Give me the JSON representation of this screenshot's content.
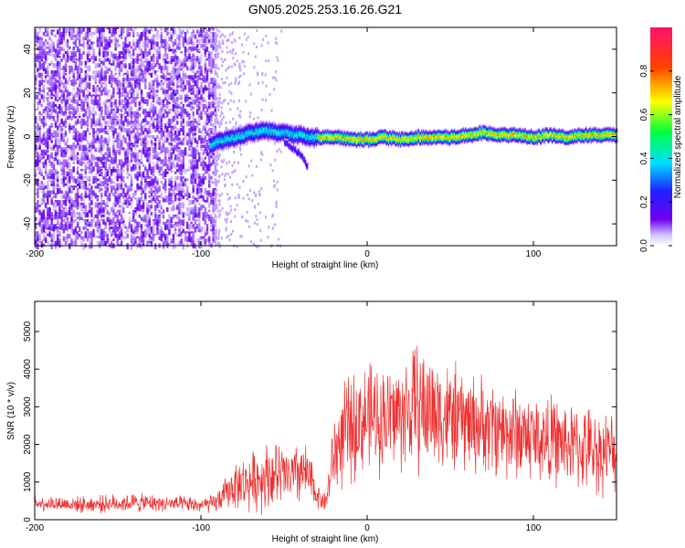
{
  "title": "GN05.2025.253.16.26.G21",
  "chart_data": [
    {
      "type": "heatmap",
      "xlabel": "Height of straight line (km)",
      "ylabel": "Frequency (Hz)",
      "xlim": [
        -200,
        150
      ],
      "ylim": [
        -50,
        50
      ],
      "x_ticks": [
        -200,
        -100,
        0,
        100
      ],
      "y_ticks": [
        -40,
        -20,
        0,
        20,
        40
      ],
      "colorbar": {
        "label": "Normalized spectral amplitude",
        "range": [
          0,
          1
        ],
        "ticks": [
          "0.0",
          "0.2",
          "0.4",
          "0.6",
          "0.8"
        ],
        "tick_values": [
          0,
          0.2,
          0.4,
          0.6,
          0.8
        ]
      },
      "noise_region_x": [
        -200,
        -92
      ],
      "signal_track": {
        "x": [
          -95,
          -90,
          -85,
          -80,
          -75,
          -70,
          -65,
          -60,
          -55,
          -50,
          -45,
          -40,
          -35,
          -30,
          -25,
          -20,
          -10,
          0,
          10,
          20,
          30,
          40,
          50,
          60,
          70,
          80,
          90,
          100,
          110,
          120,
          130,
          140,
          150
        ],
        "y": [
          -4,
          -2,
          -1,
          0,
          1,
          2,
          3,
          3,
          2,
          2,
          1,
          1,
          0,
          0,
          0,
          0,
          -1,
          -1,
          0,
          -1,
          0,
          0,
          0,
          1,
          2,
          1,
          1,
          0,
          1,
          0,
          1,
          1,
          1
        ]
      },
      "secondary_track": {
        "x": [
          -50,
          -45,
          -40,
          -38,
          -36
        ],
        "y": [
          -2,
          -5,
          -8,
          -11,
          -14
        ]
      }
    },
    {
      "type": "line",
      "xlabel": "Height of straight line (km)",
      "ylabel": "SNR (10 * v/v)",
      "xlim": [
        -200,
        150
      ],
      "ylim": [
        0,
        5800
      ],
      "x_ticks": [
        -200,
        -100,
        0,
        100
      ],
      "y_ticks": [
        0,
        1000,
        2000,
        3000,
        4000,
        5000
      ],
      "line_color": "#ee3030",
      "envelope": {
        "x": [
          -200,
          -170,
          -140,
          -120,
          -100,
          -92,
          -85,
          -80,
          -70,
          -60,
          -50,
          -45,
          -40,
          -35,
          -30,
          -25,
          -20,
          -15,
          -10,
          -5,
          0,
          10,
          20,
          30,
          35,
          40,
          50,
          60,
          70,
          80,
          90,
          100,
          110,
          120,
          130,
          140,
          150
        ],
        "mean": [
          450,
          400,
          450,
          430,
          380,
          420,
          700,
          900,
          1000,
          1200,
          1150,
          1100,
          1300,
          1100,
          650,
          450,
          1700,
          2200,
          2400,
          2600,
          2700,
          2700,
          2800,
          3000,
          2950,
          2900,
          2700,
          2600,
          2500,
          2400,
          2300,
          2200,
          2100,
          2000,
          1900,
          1800,
          1800
        ],
        "amplitude": [
          250,
          250,
          300,
          250,
          250,
          300,
          500,
          700,
          900,
          1100,
          1000,
          900,
          1100,
          900,
          400,
          300,
          1300,
          1600,
          1700,
          1700,
          1700,
          1700,
          1800,
          2000,
          2100,
          1900,
          1700,
          1600,
          1500,
          1500,
          1500,
          1400,
          1400,
          1300,
          1300,
          1300,
          1200
        ]
      }
    }
  ]
}
